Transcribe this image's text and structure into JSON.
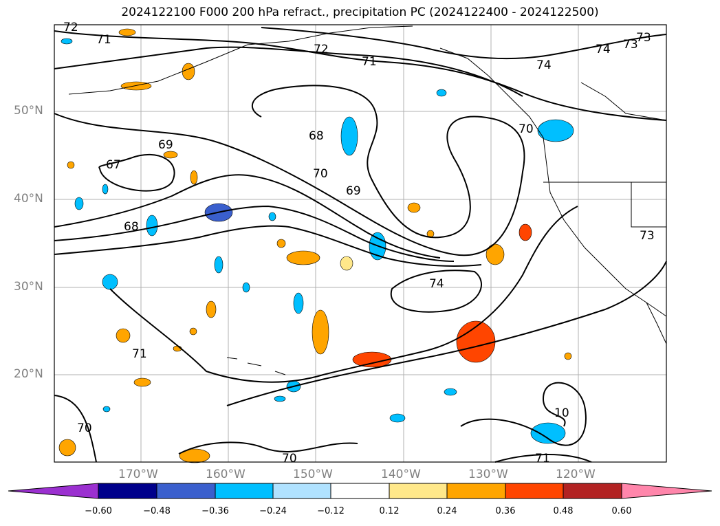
{
  "title": "2024122100 F000 200 hPa refract., precipitation PC (2024122400 - 2024122500)",
  "lat_labels": [
    "50°N",
    "40°N",
    "30°N",
    "20°N"
  ],
  "lon_labels": [
    "170°W",
    "160°W",
    "150°W",
    "140°W",
    "130°W",
    "120°W"
  ],
  "contour_labels": [
    "72",
    "71",
    "72",
    "71",
    "74",
    "73",
    "73",
    "74",
    "68",
    "69",
    "67",
    "68",
    "70",
    "69",
    "70",
    "74",
    "71",
    "70",
    "10",
    "70",
    "71",
    "73"
  ],
  "colorbar": {
    "ticks": [
      "−0.60",
      "−0.48",
      "−0.36",
      "−0.24",
      "−0.12",
      "0.12",
      "0.24",
      "0.36",
      "0.48",
      "0.60"
    ],
    "colors": [
      "#9b30d0",
      "#00008b",
      "#3a5fcd",
      "#00bfff",
      "#b0e2ff",
      "#ffffff",
      "#ffe88a",
      "#ffa500",
      "#ff4500",
      "#b22222",
      "#ff86ab"
    ]
  }
}
